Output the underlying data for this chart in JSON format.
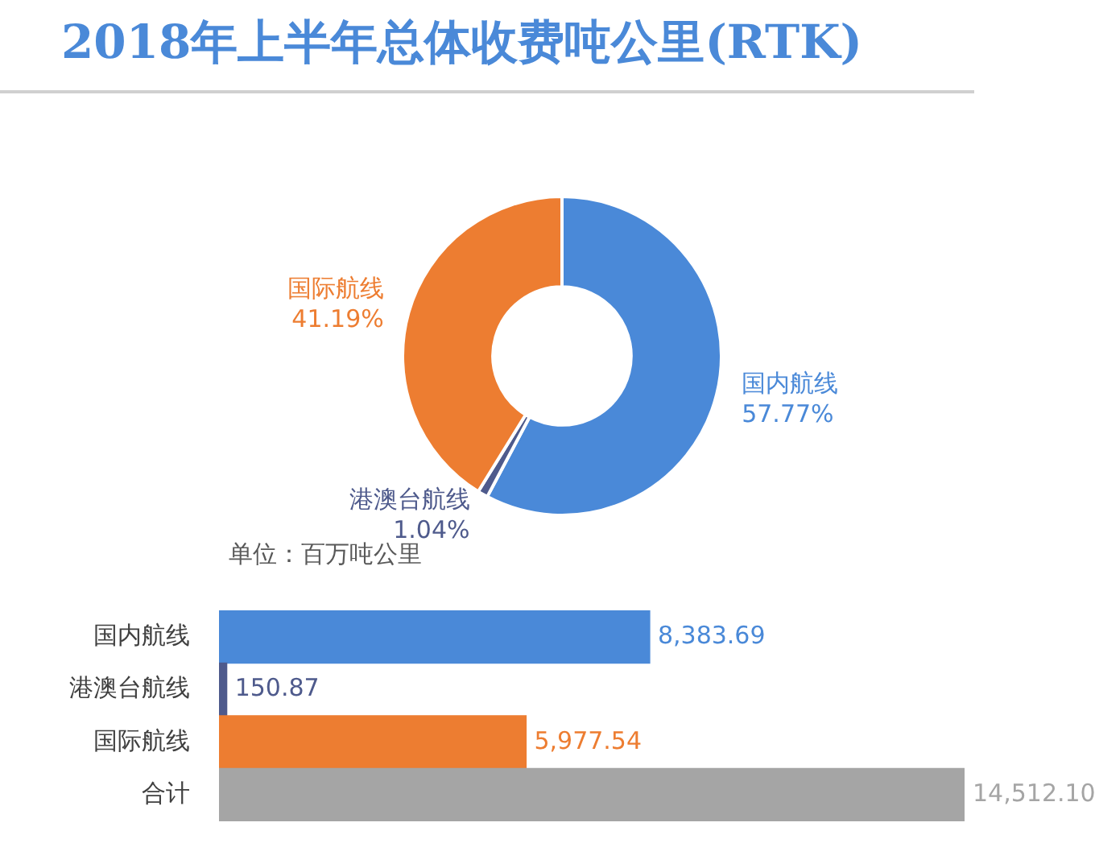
{
  "chart_data": [
    {
      "type": "donut",
      "title": "2018年上半年总体收费吨公里(RTK)",
      "categories": [
        "国内航线",
        "港澳台航线",
        "国际航线"
      ],
      "values": [
        57.77,
        1.04,
        41.19
      ],
      "colors": [
        "#4a89d8",
        "#4e5a8c",
        "#ed7d31"
      ],
      "value_labels": [
        "57.77%",
        "1.04%",
        "41.19%"
      ]
    },
    {
      "type": "bar",
      "orientation": "horizontal",
      "subtitle": "单位：百万吨公里",
      "categories": [
        "国内航线",
        "港澳台航线",
        "国际航线",
        "合计"
      ],
      "values": [
        8383.69,
        150.87,
        5977.54,
        14512.1
      ],
      "colors": [
        "#4a89d8",
        "#4e5a8c",
        "#ed7d31",
        "#a5a5a5"
      ],
      "value_labels": [
        "8,383.69",
        "150.87",
        "5,977.54",
        "14,512.10"
      ],
      "xlim": [
        0,
        14512.1
      ],
      "tick_labels": "y"
    }
  ]
}
